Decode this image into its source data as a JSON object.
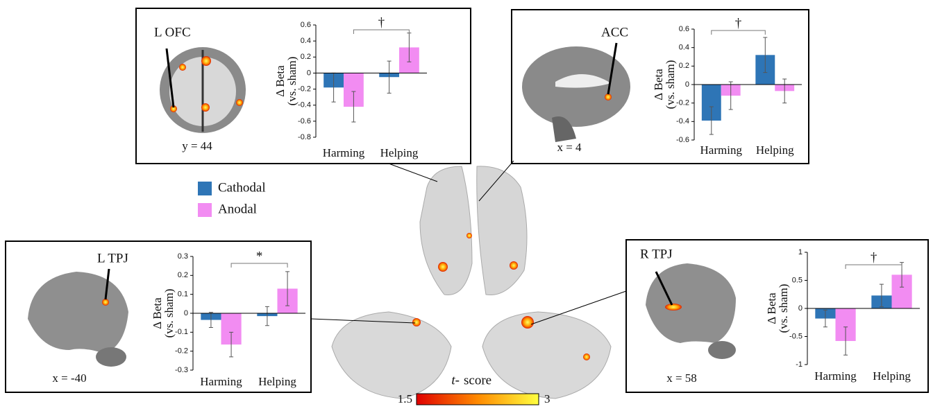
{
  "legend": [
    {
      "name": "Cathodal",
      "color": "#2e75b6"
    },
    {
      "name": "Anodal",
      "color": "#f28cf2"
    }
  ],
  "colorbar": {
    "label_italic": "t-",
    "label": "score",
    "min": 1.5,
    "max": 3
  },
  "chart_data": [
    {
      "type": "bar",
      "annotation": "L OFC",
      "slice": "y = 44",
      "ylabel": "Δ Beta",
      "ylabel2": "(vs. sham)",
      "significance": "†",
      "categories": [
        "Harming",
        "Helping"
      ],
      "series": [
        {
          "values": [
            -0.18,
            -0.05
          ],
          "errors": [
            0.18,
            0.2
          ]
        },
        {
          "values": [
            -0.42,
            0.32
          ],
          "errors": [
            0.19,
            0.18
          ]
        }
      ],
      "ylim": [
        -0.8,
        0.6
      ],
      "yticks": [
        -0.8,
        -0.6,
        -0.4,
        -0.2,
        0,
        0.2,
        0.4,
        0.6
      ]
    },
    {
      "type": "bar",
      "annotation": "ACC",
      "slice": "x = 4",
      "ylabel": "Δ Beta",
      "ylabel2": "(vs. sham)",
      "significance": "†",
      "categories": [
        "Harming",
        "Helping"
      ],
      "series": [
        {
          "values": [
            -0.39,
            0.32
          ],
          "errors": [
            0.15,
            0.19
          ]
        },
        {
          "values": [
            -0.12,
            -0.07
          ],
          "errors": [
            0.15,
            0.13
          ]
        }
      ],
      "ylim": [
        -0.6,
        0.6
      ],
      "yticks": [
        -0.6,
        -0.4,
        -0.2,
        0,
        0.2,
        0.4,
        0.6
      ]
    },
    {
      "type": "bar",
      "annotation": "L TPJ",
      "slice": "x = -40",
      "ylabel": "Δ Beta",
      "ylabel2": "(vs. sham)",
      "significance": "*",
      "categories": [
        "Harming",
        "Helping"
      ],
      "series": [
        {
          "values": [
            -0.035,
            -0.015
          ],
          "errors": [
            0.04,
            0.05
          ]
        },
        {
          "values": [
            -0.165,
            0.13
          ],
          "errors": [
            0.065,
            0.09
          ]
        }
      ],
      "ylim": [
        -0.3,
        0.3
      ],
      "yticks": [
        -0.3,
        -0.2,
        -0.1,
        0,
        0.1,
        0.2,
        0.3
      ]
    },
    {
      "type": "bar",
      "annotation": "R TPJ",
      "slice": "x = 58",
      "ylabel": "Δ Beta",
      "ylabel2": "(vs. sham)",
      "significance": "†",
      "categories": [
        "Harming",
        "Helping"
      ],
      "series": [
        {
          "values": [
            -0.18,
            0.23
          ],
          "errors": [
            0.15,
            0.2
          ]
        },
        {
          "values": [
            -0.58,
            0.6
          ],
          "errors": [
            0.25,
            0.22
          ]
        }
      ],
      "ylim": [
        -1,
        1
      ],
      "yticks": [
        -1,
        -0.5,
        0,
        0.5,
        1
      ]
    }
  ]
}
